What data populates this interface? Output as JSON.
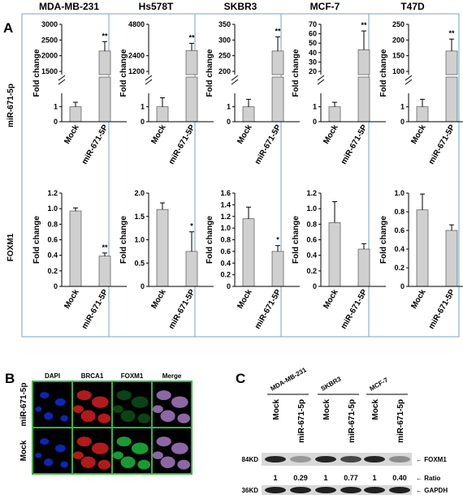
{
  "panel_labels": {
    "a": "A",
    "b": "B",
    "c": "C"
  },
  "row_labels": [
    "miR-671-5p",
    "FOXM1"
  ],
  "cell_lines": [
    "MDA-MB-231",
    "Hs578T",
    "SKBR3",
    "MCF-7",
    "T47D"
  ],
  "y_axis_label": "Fold change",
  "categories": [
    "Mock",
    "miR-671-5P"
  ],
  "chart_data": [
    {
      "type": "bar",
      "row": 0,
      "cell_line": "MDA-MB-231",
      "ylabel": "Fold change",
      "categories": [
        "Mock",
        "miR-671-5P"
      ],
      "lower_ticks": [
        "0",
        "1"
      ],
      "upper_ticks": [
        "1500",
        "2000",
        "2500",
        "3000"
      ],
      "values": [
        1,
        2150
      ],
      "errors": [
        0.3,
        300
      ],
      "significance": [
        "",
        "**"
      ]
    },
    {
      "type": "bar",
      "row": 0,
      "cell_line": "Hs578T",
      "ylabel": "Fold change",
      "categories": [
        "Mock",
        "miR-671-5P"
      ],
      "lower_ticks": [
        "0",
        "1"
      ],
      "upper_ticks": [
        "1200",
        "2400",
        "4800"
      ],
      "values": [
        1,
        2800
      ],
      "errors": [
        0.6,
        550
      ],
      "significance": [
        "",
        "**"
      ]
    },
    {
      "type": "bar",
      "row": 0,
      "cell_line": "SKBR3",
      "ylabel": "Fold change",
      "categories": [
        "Mock",
        "miR-671-5P"
      ],
      "lower_ticks": [
        "0",
        "1"
      ],
      "upper_ticks": [
        "200",
        "250",
        "300",
        "350"
      ],
      "values": [
        1,
        265
      ],
      "errors": [
        0.5,
        45
      ],
      "significance": [
        "",
        "**"
      ]
    },
    {
      "type": "bar",
      "row": 0,
      "cell_line": "MCF-7",
      "ylabel": "Fold change",
      "categories": [
        "Mock",
        "miR-671-5P"
      ],
      "lower_ticks": [
        "0",
        "1"
      ],
      "upper_ticks": [
        "20",
        "30",
        "40",
        "50",
        "60",
        "70"
      ],
      "values": [
        1,
        43
      ],
      "errors": [
        0.3,
        20
      ],
      "significance": [
        "",
        "**"
      ]
    },
    {
      "type": "bar",
      "row": 0,
      "cell_line": "T47D",
      "ylabel": "Fold change",
      "categories": [
        "Mock",
        "miR-671-5P"
      ],
      "lower_ticks": [
        "0",
        "1"
      ],
      "upper_ticks": [
        "100",
        "150",
        "200",
        "250"
      ],
      "values": [
        1,
        165
      ],
      "errors": [
        0.5,
        38
      ],
      "significance": [
        "",
        "**"
      ]
    },
    {
      "type": "bar",
      "row": 1,
      "cell_line": "MDA-MB-231",
      "ylabel": "Fold change",
      "categories": [
        "Mock",
        "miR-671-5P"
      ],
      "ylim": [
        0,
        1.2
      ],
      "ticks": [
        "0",
        "0.2",
        "0.4",
        "0.6",
        "0.8",
        "1.0",
        "1.2"
      ],
      "values": [
        0.97,
        0.39
      ],
      "errors": [
        0.04,
        0.04
      ],
      "significance": [
        "",
        "**"
      ]
    },
    {
      "type": "bar",
      "row": 1,
      "cell_line": "Hs578T",
      "ylabel": "Fold change",
      "categories": [
        "Mock",
        "miR-671-5P"
      ],
      "ylim": [
        0,
        2.0
      ],
      "ticks": [
        "0",
        "0.5",
        "1.0",
        "1.5",
        "2.0"
      ],
      "values": [
        1.65,
        0.75
      ],
      "errors": [
        0.14,
        0.42
      ],
      "significance": [
        "",
        "*"
      ]
    },
    {
      "type": "bar",
      "row": 1,
      "cell_line": "SKBR3",
      "ylabel": "Fold change",
      "categories": [
        "Mock",
        "miR-671-5P"
      ],
      "ylim": [
        0,
        1.6
      ],
      "ticks": [
        "0",
        "0.2",
        "0.4",
        "0.6",
        "0.8",
        "1.0",
        "1.2",
        "1.4",
        "1.6"
      ],
      "values": [
        1.16,
        0.6
      ],
      "errors": [
        0.2,
        0.1
      ],
      "significance": [
        "",
        "*"
      ]
    },
    {
      "type": "bar",
      "row": 1,
      "cell_line": "MCF-7",
      "ylabel": "Fold change",
      "categories": [
        "Mock",
        "miR-671-5P"
      ],
      "ylim": [
        0,
        1.2
      ],
      "ticks": [
        "0",
        "0.2",
        "0.4",
        "0.6",
        "0.8",
        "1.0",
        "1.2"
      ],
      "values": [
        0.82,
        0.48
      ],
      "errors": [
        0.27,
        0.07
      ],
      "significance": [
        "",
        ""
      ]
    },
    {
      "type": "bar",
      "row": 1,
      "cell_line": "T47D",
      "ylabel": "Fold change",
      "categories": [
        "Mock",
        "miR-671-5P"
      ],
      "ylim": [
        0,
        1.0
      ],
      "ticks": [
        "0",
        "0.2",
        "0.4",
        "0.6",
        "0.8",
        "1.0"
      ],
      "values": [
        0.82,
        0.6
      ],
      "errors": [
        0.17,
        0.06
      ],
      "significance": [
        "",
        ""
      ]
    }
  ],
  "panel_b": {
    "columns": [
      "DAPI",
      "BRCA1",
      "FOXM1",
      "Merge"
    ],
    "rows": [
      "miR-671-5p",
      "Mock"
    ],
    "channel_colors": {
      "DAPI": "#1030e0",
      "BRCA1": "#e02020",
      "FOXM1": "#20c040",
      "Merge": "#b080d0"
    }
  },
  "panel_c": {
    "cell_lines": [
      "MDA-MB-231",
      "SKBR3",
      "MCF-7"
    ],
    "lanes": [
      "Mock",
      "miR-671-5p",
      "Mock",
      "miR-671-5p",
      "Mock",
      "miR-671-5p"
    ],
    "ratios": [
      "1",
      "0.29",
      "1",
      "0.77",
      "1",
      "0.40"
    ],
    "ratio_label": "Ratio",
    "band_labels": {
      "foxm1": "FOXM1",
      "gapdh": "GAPDH"
    },
    "markers": {
      "foxm1": "84KD",
      "gapdh": "36KD"
    },
    "foxm1_intensity": [
      0.95,
      0.45,
      0.95,
      0.8,
      0.95,
      0.5
    ]
  }
}
